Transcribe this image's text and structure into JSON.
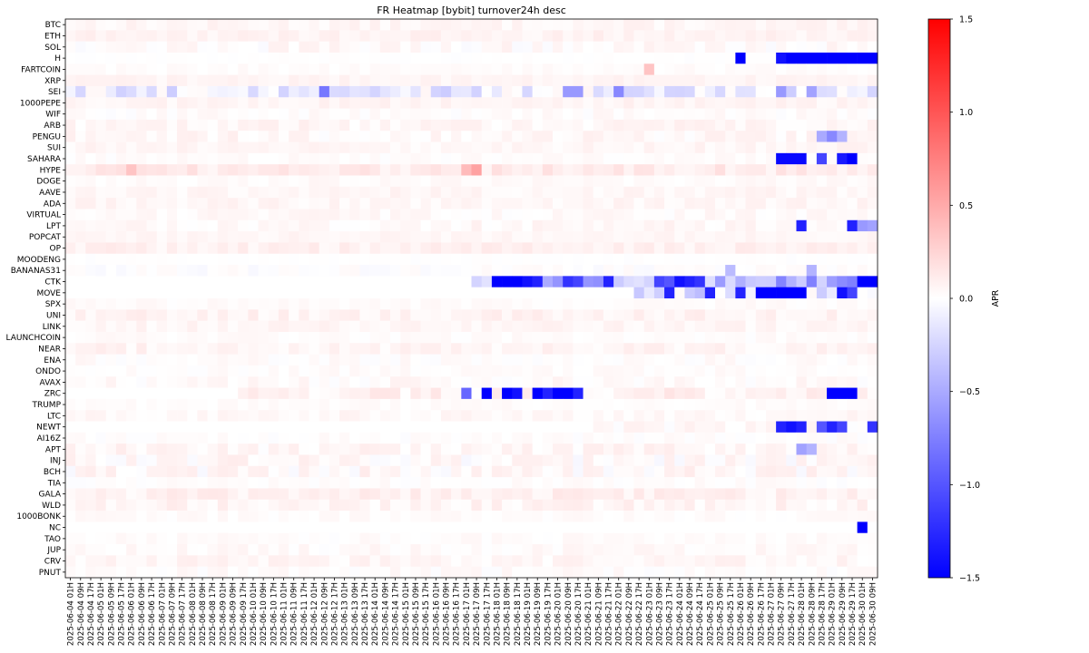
{
  "chart_data": {
    "type": "heatmap",
    "title": "FR Heatmap [bybit] turnover24h desc",
    "colorbar_label": "APR",
    "colormap": "bwr",
    "vmin": -1.5,
    "vmax": 1.5,
    "colorbar_ticks": [
      1.5,
      1.0,
      0.5,
      0.0,
      -0.5,
      -1.0,
      -1.5
    ],
    "colorbar_tick_labels": [
      "1.5",
      "1.0",
      "0.5",
      "0.0",
      "−0.5",
      "−1.0",
      "−1.5"
    ],
    "rows": [
      "BTC",
      "ETH",
      "SOL",
      "H",
      "FARTCOIN",
      "XRP",
      "SEI",
      "1000PEPE",
      "WIF",
      "ARB",
      "PENGU",
      "SUI",
      "SAHARA",
      "HYPE",
      "DOGE",
      "AAVE",
      "ADA",
      "VIRTUAL",
      "LPT",
      "POPCAT",
      "OP",
      "MOODENG",
      "BANANAS31",
      "CTK",
      "MOVE",
      "SPX",
      "UNI",
      "LINK",
      "LAUNCHCOIN",
      "NEAR",
      "ENA",
      "ONDO",
      "AVAX",
      "ZRC",
      "TRUMP",
      "LTC",
      "NEWT",
      "AI16Z",
      "APT",
      "INJ",
      "BCH",
      "TIA",
      "GALA",
      "WLD",
      "1000BONK",
      "NC",
      "TAO",
      "JUP",
      "CRV",
      "PNUT"
    ],
    "columns": [
      "2025-06-04 01H",
      "2025-06-04 09H",
      "2025-06-04 17H",
      "2025-06-05 01H",
      "2025-06-05 09H",
      "2025-06-05 17H",
      "2025-06-06 01H",
      "2025-06-06 09H",
      "2025-06-06 17H",
      "2025-06-07 01H",
      "2025-06-07 09H",
      "2025-06-07 17H",
      "2025-06-08 01H",
      "2025-06-08 09H",
      "2025-06-08 17H",
      "2025-06-09 01H",
      "2025-06-09 09H",
      "2025-06-09 17H",
      "2025-06-10 01H",
      "2025-06-10 09H",
      "2025-06-10 17H",
      "2025-06-11 01H",
      "2025-06-11 09H",
      "2025-06-11 17H",
      "2025-06-12 01H",
      "2025-06-12 09H",
      "2025-06-12 17H",
      "2025-06-13 01H",
      "2025-06-13 09H",
      "2025-06-13 17H",
      "2025-06-14 01H",
      "2025-06-14 09H",
      "2025-06-14 17H",
      "2025-06-15 01H",
      "2025-06-15 09H",
      "2025-06-15 17H",
      "2025-06-16 01H",
      "2025-06-16 09H",
      "2025-06-16 17H",
      "2025-06-17 01H",
      "2025-06-17 09H",
      "2025-06-17 17H",
      "2025-06-18 01H",
      "2025-06-18 09H",
      "2025-06-18 17H",
      "2025-06-19 01H",
      "2025-06-19 09H",
      "2025-06-19 17H",
      "2025-06-20 01H",
      "2025-06-20 09H",
      "2025-06-20 17H",
      "2025-06-21 01H",
      "2025-06-21 09H",
      "2025-06-21 17H",
      "2025-06-22 01H",
      "2025-06-22 09H",
      "2025-06-22 17H",
      "2025-06-23 01H",
      "2025-06-23 09H",
      "2025-06-23 17H",
      "2025-06-24 01H",
      "2025-06-24 09H",
      "2025-06-24 17H",
      "2025-06-25 01H",
      "2025-06-25 09H",
      "2025-06-25 17H",
      "2025-06-26 01H",
      "2025-06-26 09H",
      "2025-06-26 17H",
      "2025-06-27 01H",
      "2025-06-27 09H",
      "2025-06-27 17H",
      "2025-06-28 01H",
      "2025-06-28 09H",
      "2025-06-28 17H",
      "2025-06-29 01H",
      "2025-06-29 09H",
      "2025-06-29 17H",
      "2025-06-30 01H",
      "2025-06-30 09H"
    ],
    "x_tick_every": 1,
    "cells_per_column_label": 1,
    "notes_values": "approximate APR values per row: baseline level and notable spikes",
    "row_profiles": {
      "BTC": {
        "base": 0.05,
        "noise": 0.04
      },
      "ETH": {
        "base": 0.07,
        "noise": 0.04
      },
      "SOL": {
        "base": 0.03,
        "noise": 0.06
      },
      "H": {
        "base": 0.0,
        "noise": 0.01,
        "spikes": [
          [
            66,
            -1.5
          ],
          [
            70,
            -1.4
          ],
          [
            71,
            -1.5
          ],
          [
            72,
            -1.5
          ],
          [
            73,
            -1.5
          ],
          [
            74,
            -1.5
          ],
          [
            75,
            -1.5
          ],
          [
            76,
            -1.5
          ],
          [
            77,
            -1.5
          ],
          [
            78,
            -1.5
          ],
          [
            79,
            -1.5
          ]
        ]
      },
      "FARTCOIN": {
        "base": 0.02,
        "noise": 0.02,
        "spikes": [
          [
            57,
            0.35
          ]
        ]
      },
      "XRP": {
        "base": 0.06,
        "noise": 0.03
      },
      "SEI": {
        "base": -0.12,
        "noise": 0.18,
        "spikes": [
          [
            25,
            -0.8
          ],
          [
            49,
            -0.6
          ],
          [
            50,
            -0.6
          ],
          [
            54,
            -0.7
          ],
          [
            70,
            -0.6
          ],
          [
            73,
            -0.55
          ]
        ]
      },
      "1000PEPE": {
        "base": 0.06,
        "noise": 0.04
      },
      "WIF": {
        "base": 0.02,
        "noise": 0.04
      },
      "ARB": {
        "base": 0.05,
        "noise": 0.05
      },
      "PENGU": {
        "base": 0.04,
        "noise": 0.06,
        "spikes": [
          [
            74,
            -0.5
          ],
          [
            75,
            -0.7
          ],
          [
            76,
            -0.45
          ]
        ]
      },
      "SUI": {
        "base": 0.05,
        "noise": 0.04
      },
      "SAHARA": {
        "base": 0.02,
        "noise": 0.03,
        "spikes": [
          [
            70,
            -1.45
          ],
          [
            71,
            -1.45
          ],
          [
            72,
            -1.45
          ],
          [
            74,
            -1.1
          ],
          [
            76,
            -1.35
          ],
          [
            77,
            -1.5
          ]
        ]
      },
      "HYPE": {
        "base": 0.12,
        "noise": 0.07,
        "spikes": [
          [
            6,
            0.35
          ],
          [
            39,
            0.4
          ],
          [
            40,
            0.55
          ]
        ]
      },
      "DOGE": {
        "base": 0.03,
        "noise": 0.03
      },
      "AAVE": {
        "base": 0.05,
        "noise": 0.04
      },
      "ADA": {
        "base": 0.05,
        "noise": 0.04
      },
      "VIRTUAL": {
        "base": 0.03,
        "noise": 0.04
      },
      "LPT": {
        "base": 0.04,
        "noise": 0.05,
        "spikes": [
          [
            72,
            -1.3
          ],
          [
            77,
            -1.3
          ],
          [
            78,
            -0.6
          ],
          [
            79,
            -0.55
          ]
        ]
      },
      "POPCAT": {
        "base": 0.05,
        "noise": 0.03
      },
      "OP": {
        "base": 0.08,
        "noise": 0.05
      },
      "MOODENG": {
        "base": 0.0,
        "noise": 0.01
      },
      "BANANAS31": {
        "base": 0.0,
        "noise": 0.04,
        "spikes": [
          [
            65,
            -0.4
          ],
          [
            73,
            -0.45
          ]
        ]
      },
      "CTK": {
        "base": -0.45,
        "noise": 0.3,
        "start": 40,
        "spikes": [
          [
            42,
            -1.5
          ],
          [
            43,
            -1.5
          ],
          [
            44,
            -1.5
          ],
          [
            45,
            -1.4
          ],
          [
            46,
            -1.3
          ],
          [
            49,
            -1.2
          ],
          [
            50,
            -1.1
          ],
          [
            53,
            -1.3
          ],
          [
            58,
            -1.1
          ],
          [
            59,
            -1.0
          ],
          [
            60,
            -1.4
          ],
          [
            61,
            -1.3
          ],
          [
            62,
            -1.2
          ],
          [
            78,
            -1.5
          ],
          [
            79,
            -1.5
          ]
        ]
      },
      "MOVE": {
        "base": -0.2,
        "noise": 0.25,
        "start": 55,
        "spikes": [
          [
            59,
            -1.3
          ],
          [
            63,
            -1.3
          ],
          [
            66,
            -1.3
          ],
          [
            68,
            -1.5
          ],
          [
            69,
            -1.5
          ],
          [
            70,
            -1.5
          ],
          [
            71,
            -1.5
          ],
          [
            72,
            -1.5
          ],
          [
            76,
            -1.4
          ],
          [
            77,
            -1.1
          ]
        ]
      },
      "SPX": {
        "base": 0.02,
        "noise": 0.03
      },
      "UNI": {
        "base": 0.07,
        "noise": 0.05
      },
      "LINK": {
        "base": 0.05,
        "noise": 0.04
      },
      "LAUNCHCOIN": {
        "base": 0.02,
        "noise": 0.03
      },
      "NEAR": {
        "base": 0.06,
        "noise": 0.05
      },
      "ENA": {
        "base": 0.02,
        "noise": 0.04
      },
      "ONDO": {
        "base": 0.02,
        "noise": 0.03
      },
      "AVAX": {
        "base": 0.03,
        "noise": 0.05
      },
      "ZRC": {
        "base": 0.08,
        "noise": 0.08,
        "start": 17,
        "spikes": [
          [
            39,
            -0.9
          ],
          [
            41,
            -1.5
          ],
          [
            43,
            -1.5
          ],
          [
            44,
            -1.4
          ],
          [
            46,
            -1.5
          ],
          [
            47,
            -1.3
          ],
          [
            48,
            -1.5
          ],
          [
            49,
            -1.5
          ],
          [
            50,
            -1.3
          ],
          [
            75,
            -1.5
          ],
          [
            76,
            -1.5
          ],
          [
            77,
            -1.5
          ]
        ]
      },
      "TRUMP": {
        "base": 0.02,
        "noise": 0.02
      },
      "LTC": {
        "base": 0.04,
        "noise": 0.04
      },
      "NEWT": {
        "base": 0.03,
        "noise": 0.06,
        "start": 52,
        "spikes": [
          [
            70,
            -1.3
          ],
          [
            71,
            -1.4
          ],
          [
            72,
            -1.3
          ],
          [
            74,
            -1.0
          ],
          [
            75,
            -1.3
          ],
          [
            76,
            -1.1
          ],
          [
            79,
            -1.2
          ]
        ]
      },
      "AI16Z": {
        "base": 0.01,
        "noise": 0.03
      },
      "APT": {
        "base": 0.05,
        "noise": 0.06,
        "spikes": [
          [
            72,
            -0.55
          ],
          [
            73,
            -0.45
          ]
        ]
      },
      "INJ": {
        "base": 0.03,
        "noise": 0.08
      },
      "BCH": {
        "base": 0.04,
        "noise": 0.08
      },
      "TIA": {
        "base": 0.01,
        "noise": 0.03
      },
      "GALA": {
        "base": 0.08,
        "noise": 0.06
      },
      "WLD": {
        "base": 0.06,
        "noise": 0.06
      },
      "1000BONK": {
        "base": 0.02,
        "noise": 0.03
      },
      "NC": {
        "base": 0.0,
        "noise": 0.01,
        "start": 78,
        "spikes": [
          [
            78,
            -1.5
          ]
        ]
      },
      "TAO": {
        "base": 0.02,
        "noise": 0.03
      },
      "JUP": {
        "base": 0.03,
        "noise": 0.04
      },
      "CRV": {
        "base": 0.05,
        "noise": 0.05
      },
      "PNUT": {
        "base": 0.02,
        "noise": 0.04
      }
    }
  }
}
